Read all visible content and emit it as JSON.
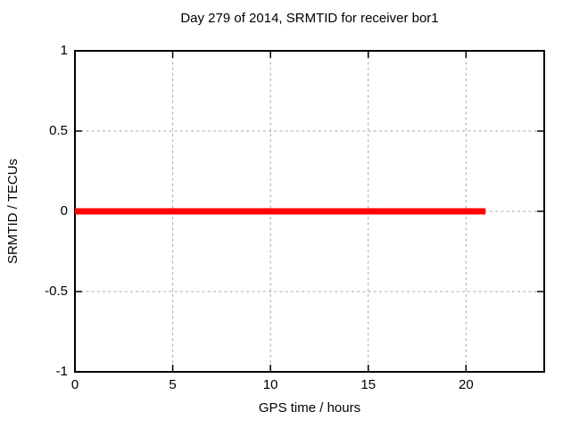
{
  "chart_data": {
    "type": "line",
    "title": "Day 279 of 2014, SRMTID for receiver bor1",
    "xlabel": "GPS time / hours",
    "ylabel": "SRMTID / TECUs",
    "xlim": [
      0,
      24
    ],
    "ylim": [
      -1,
      1
    ],
    "xticks": [
      0,
      5,
      10,
      15,
      20
    ],
    "xtick_labels": [
      "0",
      "5",
      "10",
      "15",
      "20"
    ],
    "yticks": [
      1,
      0.5,
      0,
      -0.5,
      -1
    ],
    "ytick_labels": [
      "1",
      "0.5",
      "0",
      "-0.5",
      "-1"
    ],
    "grid": true,
    "legend": "none",
    "colors": {
      "series": "#ff0000",
      "grid": "#a9a9a9",
      "border": "#000000",
      "text": "#000000",
      "background": "#ffffff"
    },
    "series": [
      {
        "name": "SRMTID",
        "color": "#ff0000",
        "linewidth": 7,
        "points": [
          [
            0,
            0
          ],
          [
            21,
            0
          ]
        ]
      }
    ]
  }
}
